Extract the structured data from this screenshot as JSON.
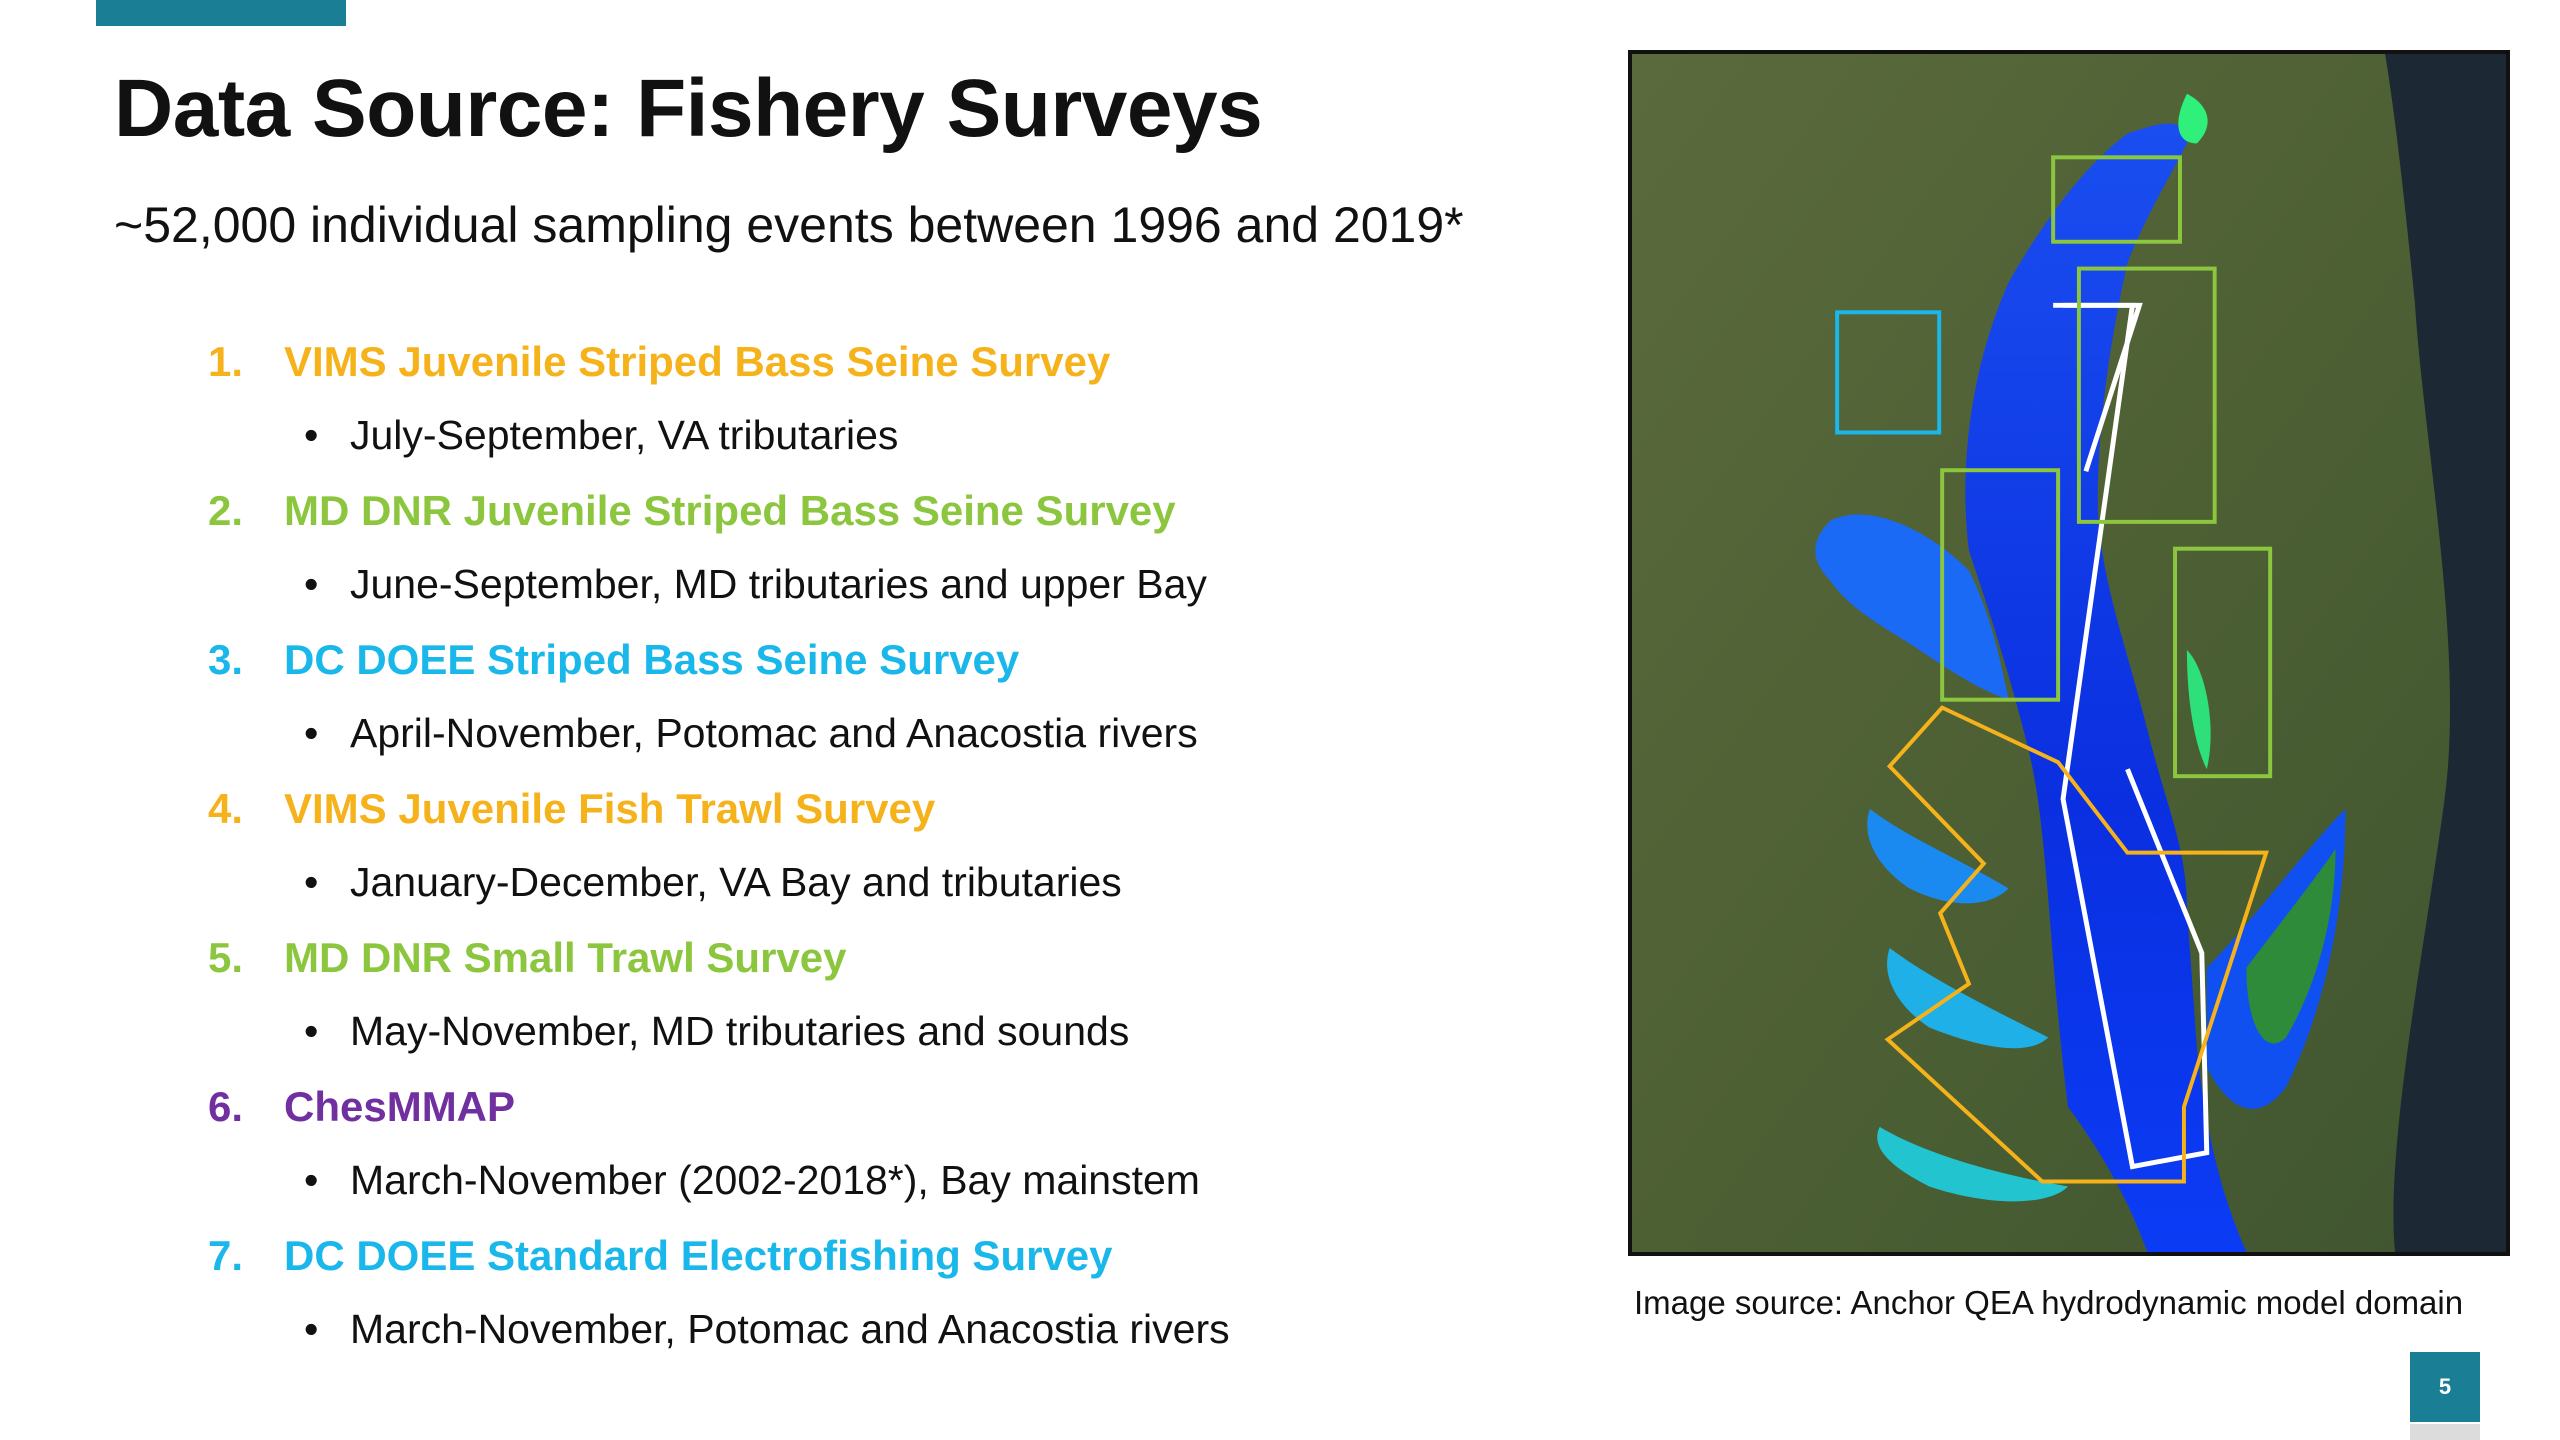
{
  "slide": {
    "title": "Data Source: Fishery Surveys",
    "subtitle": "~52,000 individual sampling events between 1996 and 2019*",
    "page_number": "5",
    "caption": "Image source: Anchor QEA hydrodynamic model domain"
  },
  "colors": {
    "accent": "#1a7f95",
    "orange": "#f5b21b",
    "green": "#8cc63f",
    "cyan": "#1ab7ea",
    "purple": "#7030a0"
  },
  "surveys": [
    {
      "num": "1.",
      "name": "VIMS Juvenile Striped Bass Seine Survey",
      "detail": "July-September, VA tributaries",
      "color": "#f5b21b"
    },
    {
      "num": "2.",
      "name": "MD DNR Juvenile Striped Bass Seine Survey",
      "detail": "June-September, MD tributaries and upper Bay",
      "color": "#8cc63f"
    },
    {
      "num": "3.",
      "name": "DC DOEE Striped Bass Seine Survey",
      "detail": "April-November, Potomac and Anacostia rivers",
      "color": "#1ab7ea"
    },
    {
      "num": "4.",
      "name": "VIMS Juvenile Fish Trawl Survey",
      "detail": "January-December, VA Bay and tributaries",
      "color": "#f5b21b"
    },
    {
      "num": "5.",
      "name": "MD DNR Small Trawl Survey",
      "detail": "May-November, MD tributaries and sounds",
      "color": "#8cc63f"
    },
    {
      "num": "6.",
      "name": "ChesMMAP",
      "detail": "March-November (2002-2018*), Bay mainstem",
      "color": "#7030a0"
    },
    {
      "num": "7.",
      "name": "DC DOEE Standard Electrofishing Survey",
      "detail": "March-November, Potomac and Anacostia rivers",
      "color": "#1ab7ea"
    }
  ],
  "bullet_char": "•"
}
